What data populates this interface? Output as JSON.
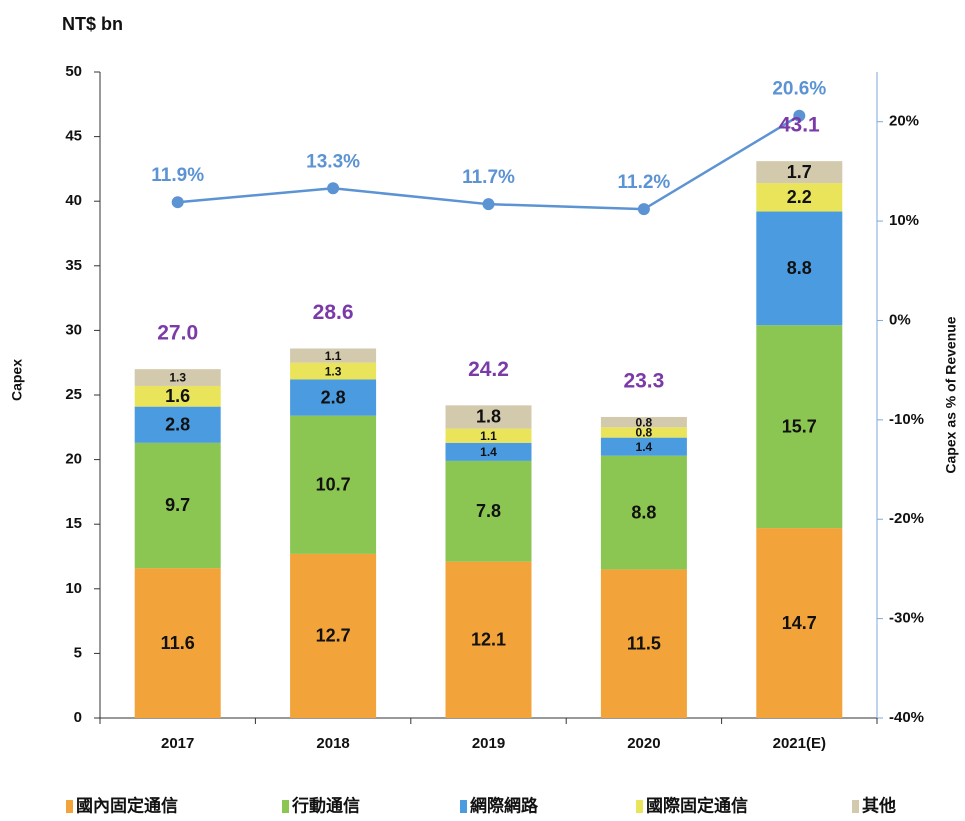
{
  "chart_data": {
    "type": "bar",
    "stacked": true,
    "title": "NT$ bn",
    "y_label": "Capex",
    "y2_label": "Capex as % of Revenue",
    "categories": [
      "2017",
      "2018",
      "2019",
      "2020",
      "2021(E)"
    ],
    "series": [
      {
        "name": "國內固定通信",
        "color": "#f2a33a",
        "values": [
          11.6,
          12.7,
          12.1,
          11.5,
          14.7
        ]
      },
      {
        "name": "行動通信",
        "color": "#8cc652",
        "values": [
          9.7,
          10.7,
          7.8,
          8.8,
          15.7
        ]
      },
      {
        "name": "網際網路",
        "color": "#4a9be0",
        "values": [
          2.8,
          2.8,
          1.4,
          1.4,
          8.8
        ]
      },
      {
        "name": "國際固定通信",
        "color": "#e9e45a",
        "values": [
          1.6,
          1.3,
          1.1,
          0.8,
          2.2
        ]
      },
      {
        "name": "其他",
        "color": "#d3c9ad",
        "values": [
          1.3,
          1.1,
          1.8,
          0.8,
          1.7
        ]
      },
      {
        "type": "line",
        "axis": "y2",
        "color": "#5b93d3",
        "values": [
          11.9,
          13.3,
          11.7,
          11.2,
          20.6
        ],
        "value_labels": [
          "11.9%",
          "13.3%",
          "11.7%",
          "11.2%",
          "20.6%"
        ]
      }
    ],
    "totals": {
      "color": "#7a3aa8",
      "values": [
        27.0,
        28.6,
        24.2,
        23.3,
        43.1
      ],
      "value_labels": [
        "27.0",
        "28.6",
        "24.2",
        "23.3",
        "43.1"
      ]
    },
    "ylim": [
      0,
      50
    ],
    "yticks": [
      0,
      5,
      10,
      15,
      20,
      25,
      30,
      35,
      40,
      45,
      50
    ],
    "y2lim": [
      -40,
      25
    ],
    "y2ticks": [
      {
        "value": -40,
        "label": "-40%"
      },
      {
        "value": -30,
        "label": "-30%"
      },
      {
        "value": -20,
        "label": "-20%"
      },
      {
        "value": -10,
        "label": "-10%"
      },
      {
        "value": 0,
        "label": "0%"
      },
      {
        "value": 10,
        "label": "10%"
      },
      {
        "value": 20,
        "label": "20%"
      }
    ],
    "legend": "bottom",
    "grid": false
  }
}
